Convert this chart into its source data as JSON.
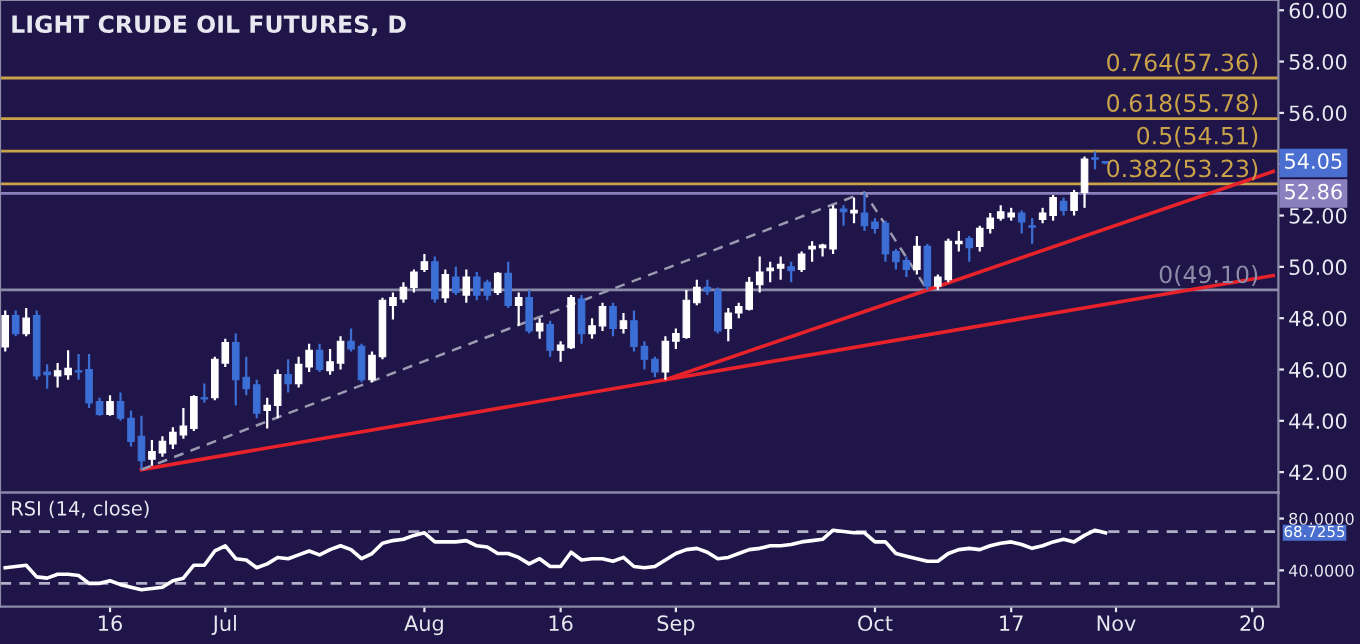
{
  "chart_data": [
    {
      "type": "candlestick",
      "title": "LIGHT CRUDE OIL FUTURES, D",
      "categories": [
        null,
        null,
        null,
        null,
        null,
        null,
        null,
        null,
        null,
        null,
        null,
        null,
        null,
        null,
        null,
        null,
        null,
        null,
        null,
        null,
        null,
        null,
        null,
        null,
        null,
        null,
        null,
        null,
        null,
        null,
        null,
        null,
        null,
        null,
        null,
        null,
        null,
        null,
        null,
        null,
        null,
        null,
        null,
        null,
        null,
        null,
        null,
        null,
        null,
        null,
        null,
        null,
        null,
        null,
        null,
        null,
        null,
        null,
        null,
        null,
        null,
        null,
        null,
        null,
        null,
        null,
        null,
        null,
        null,
        null,
        null,
        null,
        null,
        null,
        null,
        null,
        null,
        null,
        null,
        null,
        null,
        null,
        null,
        null,
        null,
        null,
        null,
        null,
        null,
        null,
        null,
        null,
        null,
        null,
        null,
        null,
        null,
        null,
        null,
        null,
        null,
        null,
        null,
        null,
        null,
        null,
        null,
        null,
        null,
        null,
        null,
        null,
        null,
        null,
        null,
        null,
        null,
        null,
        null,
        null,
        null,
        null
      ],
      "ohlc": [
        [
          46.88,
          48.3,
          46.7,
          48.1
        ],
        [
          48.1,
          48.3,
          47.3,
          47.4
        ],
        [
          47.4,
          48.4,
          47.3,
          48.0
        ],
        [
          48.1,
          48.3,
          45.6,
          45.75
        ],
        [
          45.9,
          46.2,
          45.25,
          45.8
        ],
        [
          45.75,
          46.25,
          45.3,
          45.95
        ],
        [
          45.8,
          46.75,
          45.6,
          46.05
        ],
        [
          45.95,
          46.6,
          45.6,
          45.9
        ],
        [
          46.0,
          46.6,
          44.5,
          44.7
        ],
        [
          44.75,
          44.9,
          44.2,
          44.25
        ],
        [
          44.25,
          45.0,
          44.2,
          44.75
        ],
        [
          44.75,
          45.1,
          44.0,
          44.1
        ],
        [
          44.1,
          44.4,
          43.0,
          43.2
        ],
        [
          43.4,
          44.2,
          42.1,
          42.45
        ],
        [
          42.5,
          43.25,
          42.25,
          42.8
        ],
        [
          42.75,
          43.4,
          42.6,
          43.2
        ],
        [
          43.1,
          43.75,
          42.9,
          43.55
        ],
        [
          43.45,
          44.5,
          43.3,
          43.8
        ],
        [
          43.7,
          45.0,
          43.6,
          44.95
        ],
        [
          44.9,
          45.45,
          44.7,
          44.85
        ],
        [
          44.9,
          46.5,
          44.8,
          46.4
        ],
        [
          46.25,
          47.2,
          46.1,
          47.05
        ],
        [
          47.05,
          47.4,
          44.6,
          45.6
        ],
        [
          45.7,
          46.5,
          45.0,
          45.25
        ],
        [
          45.4,
          45.6,
          44.1,
          44.3
        ],
        [
          44.4,
          44.9,
          43.7,
          44.6
        ],
        [
          44.6,
          46.0,
          44.1,
          45.8
        ],
        [
          45.8,
          46.4,
          45.1,
          45.45
        ],
        [
          45.45,
          46.5,
          45.3,
          46.2
        ],
        [
          46.1,
          47.0,
          45.9,
          46.75
        ],
        [
          46.75,
          47.0,
          45.9,
          46.0
        ],
        [
          45.95,
          46.8,
          45.8,
          46.3
        ],
        [
          46.25,
          47.3,
          46.0,
          47.1
        ],
        [
          47.1,
          47.6,
          46.7,
          46.8
        ],
        [
          46.9,
          47.0,
          45.5,
          45.6
        ],
        [
          45.6,
          46.7,
          45.5,
          46.55
        ],
        [
          46.5,
          48.8,
          46.4,
          48.7
        ],
        [
          48.5,
          49.0,
          47.95,
          48.8
        ],
        [
          48.75,
          49.4,
          48.6,
          49.2
        ],
        [
          49.2,
          49.9,
          49.0,
          49.8
        ],
        [
          49.9,
          50.5,
          49.8,
          50.2
        ],
        [
          50.2,
          50.4,
          48.6,
          48.75
        ],
        [
          48.8,
          49.9,
          48.6,
          49.7
        ],
        [
          49.6,
          50.0,
          48.9,
          49.0
        ],
        [
          48.9,
          49.9,
          48.6,
          49.6
        ],
        [
          49.6,
          49.8,
          48.7,
          48.9
        ],
        [
          49.4,
          49.5,
          48.7,
          48.9
        ],
        [
          49.0,
          49.8,
          48.9,
          49.75
        ],
        [
          49.75,
          50.2,
          48.4,
          48.5
        ],
        [
          48.5,
          49.0,
          47.7,
          48.8
        ],
        [
          48.8,
          49.1,
          47.4,
          47.5
        ],
        [
          47.5,
          48.0,
          47.2,
          47.8
        ],
        [
          47.75,
          47.9,
          46.5,
          46.75
        ],
        [
          46.75,
          47.1,
          46.3,
          46.95
        ],
        [
          46.85,
          48.9,
          46.8,
          48.8
        ],
        [
          48.75,
          48.9,
          47.0,
          47.4
        ],
        [
          47.4,
          48.0,
          47.2,
          47.7
        ],
        [
          47.7,
          48.6,
          47.5,
          48.45
        ],
        [
          48.45,
          48.6,
          47.3,
          47.6
        ],
        [
          47.6,
          48.2,
          47.4,
          47.9
        ],
        [
          47.9,
          48.3,
          46.7,
          46.9
        ],
        [
          46.9,
          47.1,
          46.0,
          46.4
        ],
        [
          46.4,
          46.5,
          45.7,
          45.9
        ],
        [
          45.9,
          47.3,
          45.6,
          47.1
        ],
        [
          47.1,
          47.6,
          46.8,
          47.4
        ],
        [
          47.25,
          49.1,
          47.2,
          48.7
        ],
        [
          48.6,
          49.5,
          48.5,
          49.2
        ],
        [
          49.2,
          49.5,
          48.9,
          49.05
        ],
        [
          49.1,
          49.2,
          47.4,
          47.5
        ],
        [
          47.6,
          48.4,
          47.1,
          48.2
        ],
        [
          48.2,
          48.6,
          48.0,
          48.45
        ],
        [
          48.35,
          49.6,
          48.3,
          49.4
        ],
        [
          49.3,
          50.4,
          49.0,
          49.8
        ],
        [
          49.85,
          50.2,
          49.4,
          49.95
        ],
        [
          49.95,
          50.4,
          49.5,
          50.1
        ],
        [
          50.0,
          50.2,
          49.4,
          49.85
        ],
        [
          49.9,
          50.6,
          49.8,
          50.5
        ],
        [
          50.7,
          51.0,
          50.2,
          50.8
        ],
        [
          50.75,
          50.9,
          50.4,
          50.85
        ],
        [
          50.7,
          52.4,
          50.5,
          52.25
        ],
        [
          52.25,
          52.4,
          51.6,
          52.15
        ],
        [
          52.1,
          52.7,
          51.7,
          52.2
        ],
        [
          52.1,
          52.9,
          51.4,
          51.6
        ],
        [
          51.75,
          51.9,
          51.3,
          51.5
        ],
        [
          51.7,
          51.8,
          50.2,
          50.5
        ],
        [
          50.6,
          50.7,
          49.9,
          50.2
        ],
        [
          50.25,
          50.4,
          49.6,
          49.9
        ],
        [
          49.9,
          51.2,
          49.7,
          50.8
        ],
        [
          50.8,
          50.9,
          49.1,
          49.25
        ],
        [
          49.25,
          49.7,
          49.1,
          49.6
        ],
        [
          49.5,
          51.1,
          49.4,
          51.0
        ],
        [
          50.9,
          51.4,
          50.6,
          51.0
        ],
        [
          51.1,
          51.2,
          50.2,
          50.75
        ],
        [
          50.8,
          51.6,
          50.6,
          51.5
        ],
        [
          51.5,
          52.1,
          51.3,
          51.9
        ],
        [
          51.9,
          52.4,
          51.8,
          52.15
        ],
        [
          51.95,
          52.3,
          51.8,
          52.1
        ],
        [
          52.1,
          52.2,
          51.3,
          51.75
        ],
        [
          51.6,
          51.9,
          50.9,
          51.55
        ],
        [
          51.85,
          52.3,
          51.7,
          52.1
        ],
        [
          52.0,
          52.8,
          51.8,
          52.7
        ],
        [
          52.55,
          52.7,
          52.0,
          52.2
        ],
        [
          52.2,
          53.0,
          52.0,
          52.9
        ],
        [
          52.9,
          54.3,
          52.3,
          54.2
        ],
        [
          54.25,
          54.5,
          53.8,
          54.2
        ],
        [
          54.1,
          54.1,
          54.0,
          54.05
        ],
        null,
        null,
        null,
        null,
        null,
        null,
        null,
        null,
        null,
        null,
        null,
        null,
        null,
        null,
        null,
        null
      ],
      "colors": [
        "#ffffff",
        "#3b6fd6",
        "#ffffff",
        "#3b6fd6",
        "#3b6fd6",
        "#ffffff",
        "#ffffff",
        "#3b6fd6",
        "#3b6fd6",
        "#3b6fd6",
        "#ffffff",
        "#3b6fd6",
        "#3b6fd6",
        "#3b6fd6",
        "#ffffff",
        "#ffffff",
        "#ffffff",
        "#ffffff",
        "#ffffff",
        "#3b6fd6",
        "#ffffff",
        "#ffffff",
        "#3b6fd6",
        "#3b6fd6",
        "#3b6fd6",
        "#ffffff",
        "#ffffff",
        "#3b6fd6",
        "#ffffff",
        "#ffffff",
        "#3b6fd6",
        "#ffffff",
        "#ffffff",
        "#3b6fd6",
        "#3b6fd6",
        "#ffffff",
        "#ffffff",
        "#ffffff",
        "#ffffff",
        "#ffffff",
        "#ffffff",
        "#3b6fd6",
        "#ffffff",
        "#3b6fd6",
        "#ffffff",
        "#3b6fd6",
        "#3b6fd6",
        "#ffffff",
        "#3b6fd6",
        "#ffffff",
        "#3b6fd6",
        "#ffffff",
        "#3b6fd6",
        "#ffffff",
        "#ffffff",
        "#3b6fd6",
        "#ffffff",
        "#ffffff",
        "#3b6fd6",
        "#ffffff",
        "#3b6fd6",
        "#3b6fd6",
        "#3b6fd6",
        "#ffffff",
        "#ffffff",
        "#ffffff",
        "#ffffff",
        "#3b6fd6",
        "#3b6fd6",
        "#ffffff",
        "#ffffff",
        "#ffffff",
        "#ffffff",
        "#ffffff",
        "#ffffff",
        "#3b6fd6",
        "#ffffff",
        "#ffffff",
        "#ffffff",
        "#ffffff",
        "#3b6fd6",
        "#ffffff",
        "#3b6fd6",
        "#3b6fd6",
        "#3b6fd6",
        "#3b6fd6",
        "#3b6fd6",
        "#ffffff",
        "#3b6fd6",
        "#ffffff",
        "#ffffff",
        "#ffffff",
        "#3b6fd6",
        "#ffffff",
        "#ffffff",
        "#ffffff",
        "#ffffff",
        "#3b6fd6",
        "#3b6fd6",
        "#ffffff",
        "#ffffff",
        "#3b6fd6",
        "#ffffff",
        "#ffffff",
        "#3b6fd6",
        "#3b6fd6",
        null,
        null,
        null,
        null,
        null,
        null,
        null,
        null,
        null,
        null,
        null,
        null,
        null,
        null,
        null,
        null
      ],
      "series": [
        {
          "type": "line",
          "color": "#e8222a",
          "line_style": "solid",
          "values": [
            null,
            null,
            null,
            null,
            null,
            null,
            null,
            null,
            null,
            null,
            null,
            null,
            null,
            42.1,
            null,
            null,
            null,
            null,
            null,
            null,
            null,
            null,
            null,
            null,
            null,
            null,
            null,
            null,
            null,
            null,
            null,
            null,
            null,
            null,
            null,
            null,
            null,
            null,
            null,
            null,
            null,
            null,
            null,
            null,
            null,
            null,
            null,
            null,
            null,
            null,
            null,
            null,
            null,
            null,
            null,
            null,
            null,
            null,
            null,
            null,
            null,
            null,
            null,
            45.6,
            null,
            null,
            null,
            null,
            null,
            null,
            null,
            null,
            null,
            null,
            null,
            null,
            null,
            null,
            null,
            null,
            null,
            null,
            null,
            null,
            null,
            null,
            null,
            null,
            null,
            null,
            null,
            null,
            null,
            null,
            null,
            null,
            null,
            null,
            null,
            null,
            null,
            null,
            null,
            null,
            null,
            null,
            null,
            null,
            null,
            null,
            null,
            null,
            null,
            null,
            null,
            null,
            null,
            null,
            null,
            null,
            null,
            49.66
          ]
        },
        {
          "type": "line",
          "color": "#e8222a",
          "line_style": "solid",
          "values": [
            null,
            null,
            null,
            null,
            null,
            null,
            null,
            null,
            null,
            null,
            null,
            null,
            null,
            null,
            null,
            null,
            null,
            null,
            null,
            null,
            null,
            null,
            null,
            null,
            null,
            null,
            null,
            null,
            null,
            null,
            null,
            null,
            null,
            null,
            null,
            null,
            null,
            null,
            null,
            null,
            null,
            null,
            null,
            null,
            null,
            null,
            null,
            null,
            null,
            null,
            null,
            null,
            null,
            null,
            null,
            null,
            null,
            null,
            null,
            null,
            null,
            null,
            null,
            45.6,
            null,
            null,
            null,
            null,
            null,
            null,
            null,
            null,
            null,
            null,
            null,
            null,
            null,
            null,
            null,
            null,
            null,
            null,
            null,
            null,
            null,
            null,
            null,
            null,
            49.1,
            null,
            null,
            null,
            null,
            null,
            null,
            null,
            null,
            null,
            null,
            null,
            null,
            null,
            null,
            null,
            null,
            null,
            null,
            null,
            null,
            null,
            null,
            null,
            null,
            null,
            null,
            null,
            null,
            null,
            null,
            null,
            null,
            53.72
          ]
        },
        {
          "type": "line",
          "color": "#9a9ab0",
          "line_style": "dashed",
          "values": [
            null,
            null,
            null,
            null,
            null,
            null,
            null,
            null,
            null,
            null,
            null,
            null,
            null,
            42.1,
            null,
            null,
            null,
            null,
            null,
            null,
            null,
            null,
            null,
            null,
            null,
            null,
            null,
            null,
            null,
            null,
            null,
            null,
            null,
            null,
            null,
            null,
            null,
            null,
            null,
            null,
            null,
            null,
            null,
            null,
            null,
            null,
            null,
            null,
            null,
            null,
            null,
            null,
            null,
            null,
            null,
            null,
            null,
            null,
            null,
            null,
            null,
            null,
            null,
            null,
            null,
            null,
            null,
            null,
            null,
            null,
            null,
            null,
            null,
            null,
            null,
            null,
            null,
            null,
            null,
            null,
            null,
            null,
            52.9,
            null,
            null,
            null,
            null,
            null,
            49.1,
            null,
            null,
            null,
            null,
            null,
            null,
            null,
            null,
            null,
            null,
            null,
            null,
            null,
            null,
            null,
            null,
            null,
            null,
            null,
            null,
            null,
            null,
            null,
            null,
            null,
            null,
            null,
            null,
            null,
            null,
            null,
            null,
            null
          ]
        }
      ],
      "ref_lines": [
        {
          "axis": "y",
          "value": 57.36,
          "label": "0.764(57.36)",
          "color": "#c9a24a"
        },
        {
          "axis": "y",
          "value": 55.78,
          "label": "0.618(55.78)",
          "color": "#c9a24a"
        },
        {
          "axis": "y",
          "value": 54.51,
          "label": "0.5(54.51)",
          "color": "#c9a24a"
        },
        {
          "axis": "y",
          "value": 53.23,
          "label": "0.382(53.23)",
          "color": "#c9a24a"
        },
        {
          "axis": "y",
          "value": 52.86,
          "label": null,
          "color": "#8a80c0"
        },
        {
          "axis": "y",
          "value": 49.1,
          "label": "0(49.10)",
          "color": "#8c8ca8"
        }
      ],
      "annotations": [
        {
          "text": "54.05",
          "y": 54.05
        },
        {
          "text": "52.86",
          "y": 52.86
        }
      ],
      "ylim": [
        41.2,
        60.4
      ],
      "yticks": [
        {
          "value": 42,
          "label": "42.00"
        },
        {
          "value": 44,
          "label": "44.00"
        },
        {
          "value": 46,
          "label": "46.00"
        },
        {
          "value": 48,
          "label": "48.00"
        },
        {
          "value": 50,
          "label": "50.00"
        },
        {
          "value": 52,
          "label": "52.00"
        },
        {
          "value": 54,
          "label": null
        },
        {
          "value": 56,
          "label": "56.00"
        },
        {
          "value": 58,
          "label": "58.00"
        },
        {
          "value": 60,
          "label": "60.00"
        }
      ]
    },
    {
      "type": "line",
      "title": "RSI (14, close)",
      "categories": [
        null,
        null,
        null,
        null,
        null,
        null,
        null,
        null,
        null,
        null,
        "16",
        null,
        null,
        null,
        null,
        null,
        null,
        null,
        null,
        null,
        null,
        "Jul",
        null,
        null,
        null,
        null,
        null,
        null,
        null,
        null,
        null,
        null,
        null,
        null,
        null,
        null,
        null,
        null,
        null,
        null,
        "Aug",
        null,
        null,
        null,
        null,
        null,
        null,
        null,
        null,
        null,
        null,
        null,
        null,
        "16",
        null,
        null,
        null,
        null,
        null,
        null,
        null,
        null,
        null,
        null,
        "Sep",
        null,
        null,
        null,
        null,
        null,
        null,
        null,
        null,
        null,
        null,
        null,
        null,
        null,
        null,
        null,
        null,
        null,
        null,
        "Oct",
        null,
        null,
        null,
        null,
        null,
        null,
        null,
        null,
        null,
        null,
        null,
        null,
        "17",
        null,
        null,
        null,
        null,
        null,
        null,
        null,
        null,
        null,
        "Nov",
        null,
        null,
        null,
        null,
        null,
        null,
        null,
        null,
        null,
        null,
        null,
        null,
        "20",
        null,
        null
      ],
      "series": [
        {
          "color": "#ffffff",
          "line_style": "solid",
          "values": [
            42,
            43,
            44,
            35,
            34,
            37,
            37,
            36,
            30,
            30,
            32,
            29,
            27,
            25,
            26,
            27,
            32,
            34,
            44,
            44,
            55,
            59,
            49,
            48,
            42,
            45,
            50,
            49,
            52,
            55,
            52,
            56,
            59,
            56,
            49,
            53,
            61,
            63,
            64,
            67,
            69,
            62,
            62,
            62,
            63,
            59,
            58,
            53,
            53,
            50,
            45,
            49,
            43,
            43,
            54,
            48,
            49,
            49,
            47,
            50,
            43,
            42,
            43,
            48,
            53,
            56,
            57,
            54,
            49,
            50,
            53,
            56,
            57,
            59,
            59,
            60,
            62,
            63,
            64,
            71,
            70,
            69,
            69,
            62,
            62,
            53,
            51,
            49,
            47,
            47,
            53,
            56,
            57,
            56,
            59,
            61,
            62,
            60,
            57,
            59,
            62,
            64,
            62,
            67,
            71,
            69,
            null,
            null,
            null,
            null,
            null,
            null,
            null,
            null,
            null,
            null,
            null,
            null,
            null,
            null,
            null,
            null
          ]
        }
      ],
      "ref_lines": [
        {
          "axis": "y",
          "value": 70,
          "label": null,
          "color": "#b0b0c8",
          "line_style": "dashed"
        },
        {
          "axis": "y",
          "value": 30,
          "label": null,
          "color": "#b0b0c8",
          "line_style": "dashed"
        }
      ],
      "annotations": [
        "68.7255"
      ],
      "ylim": [
        12,
        100
      ],
      "yticks": [
        {
          "value": 40,
          "label": "40.0000"
        },
        {
          "value": 80,
          "label": "80.0000"
        }
      ]
    }
  ]
}
